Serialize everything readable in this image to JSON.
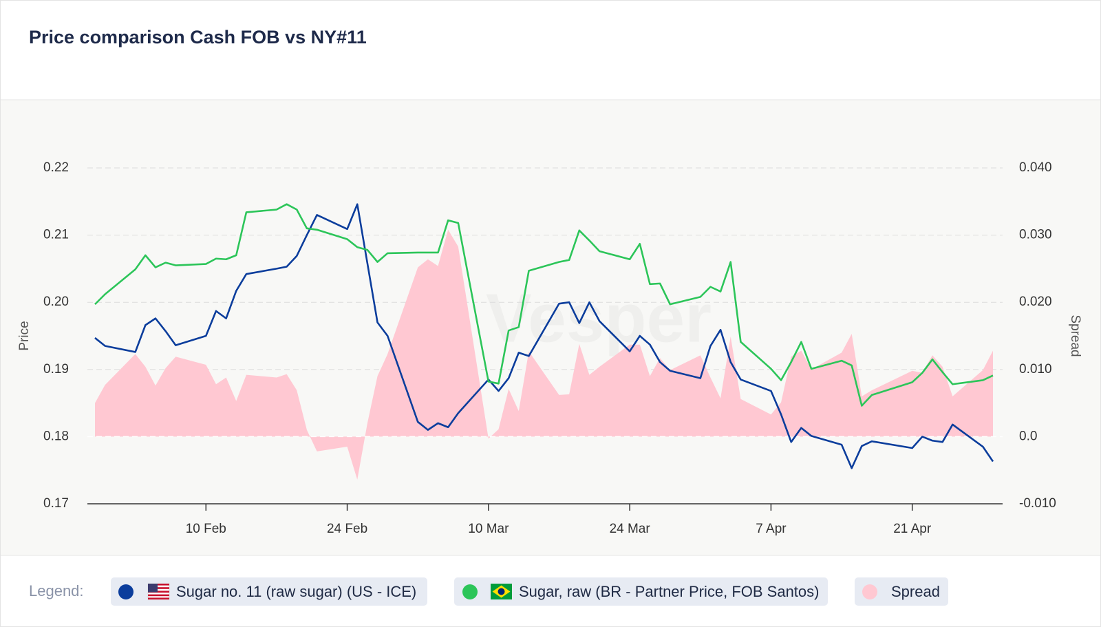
{
  "chart_data": {
    "type": "line",
    "title": "Price comparison Cash FOB vs NY#11",
    "watermark": "Vesper",
    "y_label": "Price",
    "y2_label": "Spread",
    "legend_label": "Legend:",
    "x": [
      "30 Jan",
      "31 Jan",
      "3 Feb",
      "4 Feb",
      "5 Feb",
      "6 Feb",
      "7 Feb",
      "10 Feb",
      "11 Feb",
      "12 Feb",
      "13 Feb",
      "14 Feb",
      "17 Feb",
      "18 Feb",
      "19 Feb",
      "20 Feb",
      "21 Feb",
      "24 Feb",
      "25 Feb",
      "26 Feb",
      "27 Feb",
      "28 Feb",
      "3 Mar",
      "4 Mar",
      "5 Mar",
      "6 Mar",
      "7 Mar",
      "10 Mar",
      "11 Mar",
      "12 Mar",
      "13 Mar",
      "14 Mar",
      "17 Mar",
      "18 Mar",
      "19 Mar",
      "20 Mar",
      "21 Mar",
      "24 Mar",
      "25 Mar",
      "26 Mar",
      "27 Mar",
      "28 Mar",
      "31 Mar",
      "1 Apr",
      "2 Apr",
      "3 Apr",
      "4 Apr",
      "7 Apr",
      "8 Apr",
      "9 Apr",
      "10 Apr",
      "11 Apr",
      "14 Apr",
      "15 Apr",
      "16 Apr",
      "17 Apr",
      "21 Apr",
      "22 Apr",
      "23 Apr",
      "24 Apr",
      "25 Apr",
      "28 Apr",
      "29 Apr"
    ],
    "xticks": [
      "10 Feb",
      "24 Feb",
      "10 Mar",
      "24 Mar",
      "7 Apr",
      "21 Apr"
    ],
    "ylim": [
      0.17,
      0.22
    ],
    "yticks": [
      0.17,
      0.18,
      0.19,
      {
        "value": 0.2,
        "label": "0.20"
      },
      0.21,
      0.22
    ],
    "y2lim": [
      -0.01,
      0.04
    ],
    "y2ticks": [
      {
        "value": -0.01,
        "label": "-0.010"
      },
      {
        "value": 0,
        "label": "0.0"
      },
      {
        "value": 0.01,
        "label": "0.010"
      },
      {
        "value": 0.02,
        "label": "0.020"
      },
      {
        "value": 0.03,
        "label": "0.030"
      },
      {
        "value": 0.04,
        "label": "0.040"
      }
    ],
    "grid": true,
    "legend": "bottom",
    "series": [
      {
        "name": "Sugar no. 11 (raw sugar) (US - ICE)",
        "color": "#0b3d9c",
        "type": "line",
        "values": [
          0.1947,
          0.1935,
          0.1926,
          0.1966,
          0.1976,
          0.1957,
          0.1936,
          0.195,
          0.1987,
          0.1976,
          0.2017,
          0.2042,
          0.205,
          0.2053,
          0.2069,
          0.21,
          0.213,
          0.2109,
          0.2146,
          0.2058,
          0.197,
          0.195,
          0.1822,
          0.181,
          0.182,
          0.1814,
          0.1835,
          0.1885,
          0.1868,
          0.1887,
          0.1925,
          0.192,
          0.1998,
          0.2,
          0.1969,
          0.2,
          0.1972,
          0.1927,
          0.195,
          0.1937,
          0.1911,
          0.1898,
          0.1887,
          0.1935,
          0.1959,
          0.1911,
          0.1885,
          0.1868,
          0.1833,
          0.1792,
          0.1813,
          0.1801,
          0.1788,
          0.1753,
          0.1786,
          0.1793,
          0.1783,
          0.18,
          0.1794,
          0.1792,
          0.1818,
          0.1785,
          0.1763
        ]
      },
      {
        "name": "Sugar, raw (BR - Partner Price, FOB Santos)",
        "color": "#2cc559",
        "type": "line",
        "values": [
          0.1997,
          0.2012,
          0.2049,
          0.207,
          0.2052,
          0.2059,
          0.2055,
          0.2057,
          0.2065,
          0.2064,
          0.207,
          0.2134,
          0.2138,
          0.2146,
          0.2138,
          0.211,
          0.2108,
          0.2094,
          0.2082,
          0.2078,
          0.206,
          0.2073,
          0.2074,
          0.2074,
          0.2074,
          0.2122,
          0.2118,
          0.1882,
          0.1879,
          0.1958,
          0.1963,
          0.2047,
          0.206,
          0.2063,
          0.2107,
          0.2092,
          0.2076,
          0.2064,
          0.2087,
          0.2027,
          0.2028,
          0.1997,
          0.2008,
          0.2023,
          0.2016,
          0.206,
          0.1941,
          0.1901,
          0.1884,
          0.1911,
          0.1941,
          0.1901,
          0.1913,
          0.1906,
          0.1846,
          0.1862,
          0.1881,
          0.1895,
          0.1915,
          0.1896,
          0.1878,
          0.1884,
          0.1891
        ]
      },
      {
        "name": "Spread",
        "color": "#ffc8d2",
        "type": "area",
        "axis": "y2",
        "values": [
          0.005,
          0.0077,
          0.0123,
          0.0104,
          0.0076,
          0.0102,
          0.0119,
          0.0107,
          0.0078,
          0.0088,
          0.0053,
          0.0092,
          0.0088,
          0.0093,
          0.0069,
          0.001,
          -0.0022,
          -0.0015,
          -0.0064,
          0.002,
          0.009,
          0.0123,
          0.0252,
          0.0264,
          0.0254,
          0.0308,
          0.0283,
          -0.0003,
          0.0011,
          0.0071,
          0.0038,
          0.0127,
          0.0062,
          0.0063,
          0.0138,
          0.0092,
          0.0104,
          0.0137,
          0.0137,
          0.009,
          0.0117,
          0.0099,
          0.0121,
          0.0088,
          0.0057,
          0.0149,
          0.0056,
          0.0033,
          0.0051,
          0.0119,
          0.0128,
          0.01,
          0.0125,
          0.0153,
          0.006,
          0.0069,
          0.0098,
          0.0095,
          0.0121,
          0.0104,
          0.006,
          0.0099,
          0.0128
        ]
      }
    ]
  }
}
